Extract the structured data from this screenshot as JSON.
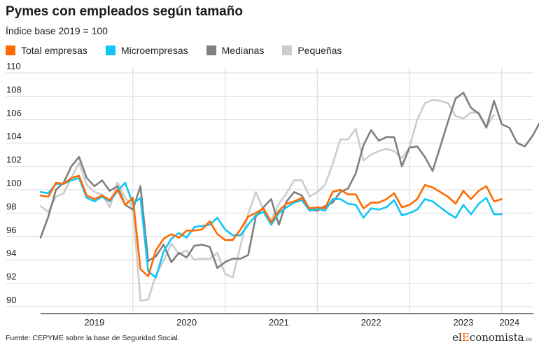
{
  "title": "Pymes con empleados según tamaño",
  "subtitle": "Índice base 2019 = 100",
  "source": "Fuente: CEPYME sobre la base de Seguridad Social.",
  "logo": {
    "pre": "el",
    "accent": "E",
    "post": "conomista",
    "suffix": ".es"
  },
  "colors": {
    "total": "#ff6a00",
    "micro": "#11c6f5",
    "medianas": "#7f7f7f",
    "pequenas": "#cccccc"
  },
  "chart_data": {
    "type": "line",
    "title": "Pymes con empleados según tamaño",
    "subtitle": "Índice base 2019 = 100",
    "xlabel": "",
    "ylabel": "",
    "ylim": [
      90,
      110
    ],
    "yticks": [
      90,
      92,
      94,
      96,
      98,
      100,
      102,
      104,
      106,
      108,
      110
    ],
    "xticks": [
      {
        "label": "2019",
        "month": 7
      },
      {
        "label": "2020",
        "month": 19
      },
      {
        "label": "2021",
        "month": 31
      },
      {
        "label": "2022",
        "month": 43
      },
      {
        "label": "2023",
        "month": 55
      },
      {
        "label": "2024",
        "month": 61
      }
    ],
    "year_separators": [
      12,
      24,
      36,
      48,
      60
    ],
    "x_start": "2019-01",
    "grid": true,
    "legend": "top-left",
    "series": [
      {
        "name": "Total empresas",
        "color": "#ff6a00",
        "values": [
          99.5,
          99.4,
          100.6,
          100.5,
          101.0,
          101.2,
          99.5,
          99.2,
          99.5,
          99.1,
          100.0,
          98.7,
          99.3,
          93.2,
          92.6,
          94.8,
          95.8,
          96.2,
          95.9,
          96.5,
          96.5,
          96.6,
          97.3,
          96.2,
          95.7,
          95.7,
          96.6,
          97.7,
          98.0,
          98.4,
          97.2,
          98.2,
          98.8,
          99.0,
          99.3,
          98.4,
          98.5,
          98.4,
          99.8,
          100.0,
          99.6,
          99.6,
          98.4,
          98.9,
          98.9,
          99.2,
          99.7,
          98.5,
          98.7,
          99.2,
          100.4,
          100.2,
          99.8,
          99.4,
          98.8,
          99.9,
          99.2,
          99.9,
          100.3,
          99.0,
          99.2
        ]
      },
      {
        "name": "Microempresas",
        "color": "#11c6f5",
        "values": [
          99.8,
          99.7,
          100.5,
          100.5,
          100.8,
          101.0,
          99.3,
          99.0,
          99.4,
          99.0,
          99.9,
          100.6,
          98.8,
          99.3,
          93.0,
          92.5,
          94.7,
          95.8,
          96.3,
          95.9,
          96.8,
          96.9,
          97.0,
          97.6,
          96.6,
          96.1,
          96.1,
          97.0,
          97.8,
          98.1,
          97.0,
          98.0,
          98.5,
          98.9,
          99.1,
          98.2,
          98.4,
          98.2,
          99.2,
          99.2,
          98.8,
          98.7,
          97.6,
          98.4,
          98.3,
          98.5,
          99.1,
          97.8,
          98.0,
          98.3,
          99.2,
          99.0,
          98.5,
          98.0,
          97.6,
          98.7,
          97.9,
          98.8,
          99.3,
          97.9,
          97.9
        ]
      },
      {
        "name": "Medianas",
        "color": "#7f7f7f",
        "values": [
          95.9,
          97.7,
          100.0,
          100.6,
          102.0,
          102.8,
          101.0,
          100.3,
          100.8,
          99.9,
          100.3,
          98.7,
          98.3,
          100.3,
          93.9,
          94.3,
          95.3,
          93.8,
          94.6,
          94.2,
          95.2,
          95.3,
          95.1,
          93.3,
          93.8,
          94.1,
          94.1,
          94.4,
          97.7,
          98.5,
          99.2,
          97.0,
          99.0,
          99.8,
          99.5,
          98.3,
          98.2,
          98.6,
          98.9,
          99.8,
          100.1,
          101.4,
          103.8,
          105.1,
          104.2,
          104.5,
          104.5,
          102.0,
          103.6,
          103.7,
          102.8,
          101.6,
          103.7,
          105.8,
          107.8,
          108.3,
          107.0,
          106.5,
          105.3,
          107.6,
          105.6,
          105.3,
          104.0,
          103.7,
          104.6,
          105.8
        ]
      },
      {
        "name": "Pequeñas",
        "color": "#cccccc",
        "values": [
          98.6,
          98.1,
          99.4,
          99.7,
          101.0,
          102.3,
          100.4,
          99.8,
          99.6,
          98.5,
          100.6,
          99.3,
          98.5,
          90.5,
          90.6,
          92.7,
          93.9,
          95.4,
          94.5,
          94.8,
          94.0,
          94.1,
          94.1,
          94.6,
          92.8,
          92.5,
          95.2,
          97.9,
          99.8,
          98.3,
          97.4,
          98.8,
          99.7,
          100.8,
          100.8,
          99.4,
          99.8,
          100.4,
          102.2,
          104.3,
          104.3,
          105.2,
          102.5,
          103.0,
          103.3,
          103.5,
          103.3,
          102.7,
          103.6,
          106.0,
          107.4,
          107.7,
          107.6,
          107.4,
          106.3,
          106.1,
          106.6,
          106.6,
          105.4,
          106.4
        ]
      }
    ]
  }
}
